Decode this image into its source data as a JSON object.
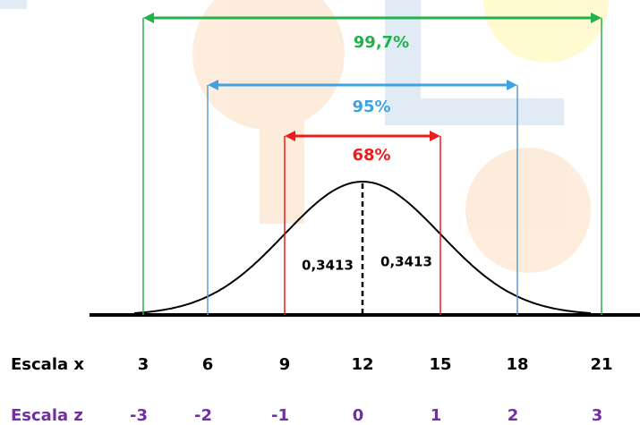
{
  "brackets": [
    {
      "label": "99,7%",
      "color": "#22b14c"
    },
    {
      "label": "95%",
      "color": "#3ea3e0"
    },
    {
      "label": "68%",
      "color": "#ee1c1c"
    }
  ],
  "bracket_line_colors": [
    "#22b14c",
    "#5b9bd5",
    "#ee1c1c"
  ],
  "halves": [
    "0,3413",
    "0,3413"
  ],
  "scale_x": {
    "label": "Escala x",
    "values": [
      3,
      6,
      9,
      12,
      15,
      18,
      21
    ]
  },
  "scale_z": {
    "label": "Escala z",
    "values": [
      -3,
      -2,
      -1,
      0,
      1,
      2,
      3
    ]
  }
}
